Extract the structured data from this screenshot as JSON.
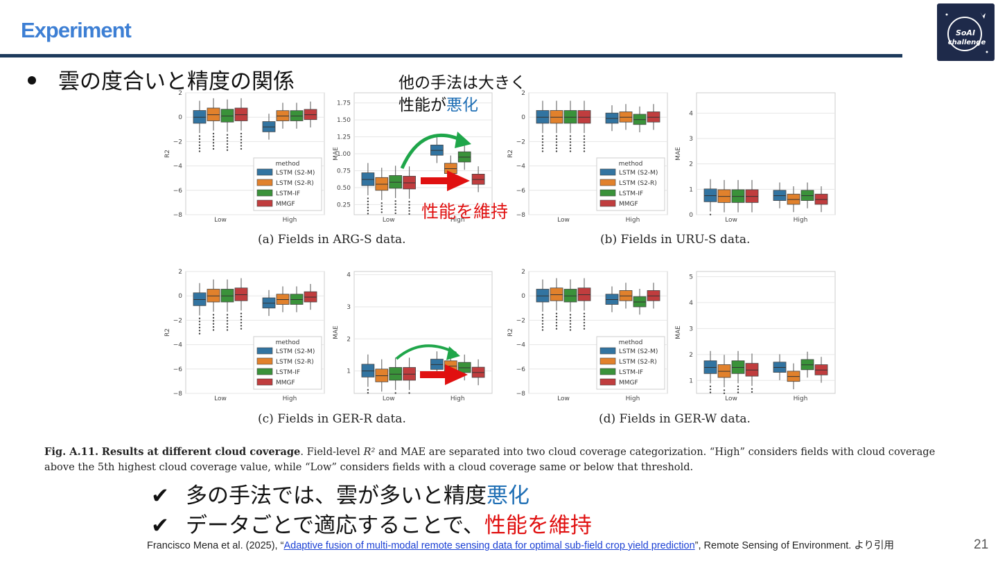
{
  "header": {
    "title": "Experiment",
    "logo_text": "SoAI Challenge"
  },
  "bullet": {
    "text": "雲の度合いと精度の関係"
  },
  "notes": {
    "worse_line1": "他の手法は大きく",
    "worse_line2a": "性能が",
    "worse_line2b": "悪化",
    "maintain": "性能を維持"
  },
  "colors": {
    "accent_blue": "#3d7fd4",
    "bar_navy": "#1d3a5c",
    "highlight_blue": "#1f6fb5",
    "highlight_red": "#e01010",
    "arrow_green": "#1fa64a",
    "lstm_s2m": "#3274a1",
    "lstm_s2r": "#e1812c",
    "lstm_if": "#3a923a",
    "mmgf": "#c03d3e"
  },
  "subcaptions": {
    "a": "(a) Fields in ARG-S data.",
    "b": "(b) Fields in URU-S data.",
    "c": "(c) Fields in GER-R data.",
    "d": "(d) Fields in GER-W data."
  },
  "chart_data": [
    {
      "type": "box",
      "panel": "a-left",
      "ylabel": "R2",
      "categories": [
        "Low",
        "High"
      ],
      "ylim": [
        -8,
        2
      ],
      "yticks": [
        2,
        0,
        -2,
        -4,
        -6,
        -8
      ],
      "legend": {
        "title": "method",
        "entries": [
          "LSTM (S2-M)",
          "LSTM (S2-R)",
          "LSTM-IF",
          "MMGF"
        ]
      },
      "series": [
        {
          "name": "LSTM (S2-M)",
          "medians": [
            0.0,
            -0.8
          ]
        },
        {
          "name": "LSTM (S2-R)",
          "medians": [
            0.2,
            0.1
          ]
        },
        {
          "name": "LSTM-IF",
          "medians": [
            0.1,
            0.1
          ]
        },
        {
          "name": "MMGF",
          "medians": [
            0.2,
            0.2
          ]
        }
      ]
    },
    {
      "type": "box",
      "panel": "a-right",
      "ylabel": "MAE",
      "categories": [
        "Low",
        "High"
      ],
      "ylim": [
        0.1,
        1.9
      ],
      "yticks": [
        1.75,
        1.5,
        1.25,
        1.0,
        0.75,
        0.5,
        0.25
      ],
      "series": [
        {
          "name": "LSTM (S2-M)",
          "medians": [
            0.62,
            1.05
          ]
        },
        {
          "name": "LSTM (S2-R)",
          "medians": [
            0.55,
            0.78
          ]
        },
        {
          "name": "LSTM-IF",
          "medians": [
            0.58,
            0.95
          ]
        },
        {
          "name": "MMGF",
          "medians": [
            0.57,
            0.62
          ]
        }
      ]
    },
    {
      "type": "box",
      "panel": "b-left",
      "ylabel": "R2",
      "categories": [
        "Low",
        "High"
      ],
      "ylim": [
        -8,
        2
      ],
      "yticks": [
        2,
        0,
        -2,
        -4,
        -6,
        -8
      ],
      "legend": {
        "title": "method",
        "entries": [
          "LSTM (S2-M)",
          "LSTM (S2-R)",
          "LSTM-IF",
          "MMGF"
        ]
      },
      "series": [
        {
          "name": "LSTM (S2-M)",
          "medians": [
            0.0,
            -0.1
          ]
        },
        {
          "name": "LSTM (S2-R)",
          "medians": [
            0.0,
            0.0
          ]
        },
        {
          "name": "LSTM-IF",
          "medians": [
            0.0,
            -0.2
          ]
        },
        {
          "name": "MMGF",
          "medians": [
            0.0,
            0.0
          ]
        }
      ]
    },
    {
      "type": "box",
      "panel": "b-right",
      "ylabel": "MAE",
      "categories": [
        "Low",
        "High"
      ],
      "ylim": [
        0,
        4.8
      ],
      "yticks": [
        4,
        3,
        2,
        1,
        0
      ],
      "series": [
        {
          "name": "LSTM (S2-M)",
          "medians": [
            0.75,
            0.75
          ]
        },
        {
          "name": "LSTM (S2-R)",
          "medians": [
            0.72,
            0.6
          ]
        },
        {
          "name": "LSTM-IF",
          "medians": [
            0.72,
            0.75
          ]
        },
        {
          "name": "MMGF",
          "medians": [
            0.72,
            0.6
          ]
        }
      ]
    },
    {
      "type": "box",
      "panel": "c-left",
      "ylabel": "R2",
      "categories": [
        "Low",
        "High"
      ],
      "ylim": [
        -8,
        2
      ],
      "yticks": [
        2,
        0,
        -2,
        -4,
        -6,
        -8
      ],
      "legend": {
        "title": "method",
        "entries": [
          "LSTM (S2-M)",
          "LSTM (S2-R)",
          "LSTM-IF",
          "MMGF"
        ]
      },
      "series": [
        {
          "name": "LSTM (S2-M)",
          "medians": [
            -0.3,
            -0.6
          ]
        },
        {
          "name": "LSTM (S2-R)",
          "medians": [
            0.0,
            -0.3
          ]
        },
        {
          "name": "LSTM-IF",
          "medians": [
            0.0,
            -0.3
          ]
        },
        {
          "name": "MMGF",
          "medians": [
            0.1,
            -0.1
          ]
        }
      ]
    },
    {
      "type": "box",
      "panel": "c-right",
      "ylabel": "MAE",
      "categories": [
        "Low",
        "High"
      ],
      "ylim": [
        0.3,
        4.1
      ],
      "yticks": [
        4,
        3,
        2,
        1
      ],
      "series": [
        {
          "name": "LSTM (S2-M)",
          "medians": [
            1.0,
            1.2
          ]
        },
        {
          "name": "LSTM (S2-R)",
          "medians": [
            0.85,
            1.15
          ]
        },
        {
          "name": "LSTM-IF",
          "medians": [
            0.9,
            1.1
          ]
        },
        {
          "name": "MMGF",
          "medians": [
            0.9,
            0.95
          ]
        }
      ]
    },
    {
      "type": "box",
      "panel": "d-left",
      "ylabel": "R2",
      "categories": [
        "Low",
        "High"
      ],
      "ylim": [
        -8,
        2
      ],
      "yticks": [
        2,
        0,
        -2,
        -4,
        -6,
        -8
      ],
      "legend": {
        "title": "method",
        "entries": [
          "LSTM (S2-M)",
          "LSTM (S2-R)",
          "LSTM-IF",
          "MMGF"
        ]
      },
      "series": [
        {
          "name": "LSTM (S2-M)",
          "medians": [
            0.0,
            -0.3
          ]
        },
        {
          "name": "LSTM (S2-R)",
          "medians": [
            0.1,
            0.0
          ]
        },
        {
          "name": "LSTM-IF",
          "medians": [
            0.0,
            -0.5
          ]
        },
        {
          "name": "MMGF",
          "medians": [
            0.1,
            0.0
          ]
        }
      ]
    },
    {
      "type": "box",
      "panel": "d-right",
      "ylabel": "MAE",
      "categories": [
        "Low",
        "High"
      ],
      "ylim": [
        0.5,
        5.2
      ],
      "yticks": [
        5,
        4,
        3,
        2,
        1
      ],
      "series": [
        {
          "name": "LSTM (S2-M)",
          "medians": [
            1.5,
            1.5
          ]
        },
        {
          "name": "LSTM (S2-R)",
          "medians": [
            1.35,
            1.15
          ]
        },
        {
          "name": "LSTM-IF",
          "medians": [
            1.5,
            1.6
          ]
        },
        {
          "name": "MMGF",
          "medians": [
            1.4,
            1.4
          ]
        }
      ]
    }
  ],
  "figcaption": {
    "label": "Fig. A.11.",
    "bold": "Results at different cloud coverage",
    "text1": ". Field-level ",
    "r2": "R²",
    "text2": " and MAE are separated into two cloud coverage categorization. “High” considers fields with cloud coverage above the 5th highest cloud coverage value, while “Low” considers fields with a cloud coverage same or below that threshold."
  },
  "checks": [
    {
      "mark": "✔",
      "text": "多の手法では、雲が多いと精度",
      "highlight": "悪化"
    },
    {
      "mark": "✔",
      "text": "データごとで適応することで、",
      "highlight": "性能を維持"
    }
  ],
  "citation": {
    "prefix": "Francisco Mena et al. (2025), “",
    "link": "Adaptive fusion of multi-modal remote sensing data for optimal sub-field crop yield prediction",
    "suffix": "”, Remote Sensing of Environment. より引用"
  },
  "page_number": "21"
}
